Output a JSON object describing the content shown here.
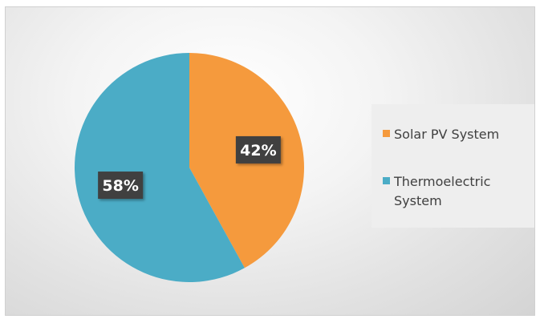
{
  "chart_data": {
    "type": "pie",
    "title": "",
    "slices": [
      {
        "name": "Solar PV System",
        "value": 42,
        "label": "42%",
        "color": "#F59A3D"
      },
      {
        "name": "Thermoelectric System",
        "value": 58,
        "label": "58%",
        "color": "#4BACC6"
      }
    ],
    "start_angle_deg": 0,
    "direction": "clockwise",
    "data_label_style": "dark-box-white-text",
    "legend_position": "right"
  }
}
